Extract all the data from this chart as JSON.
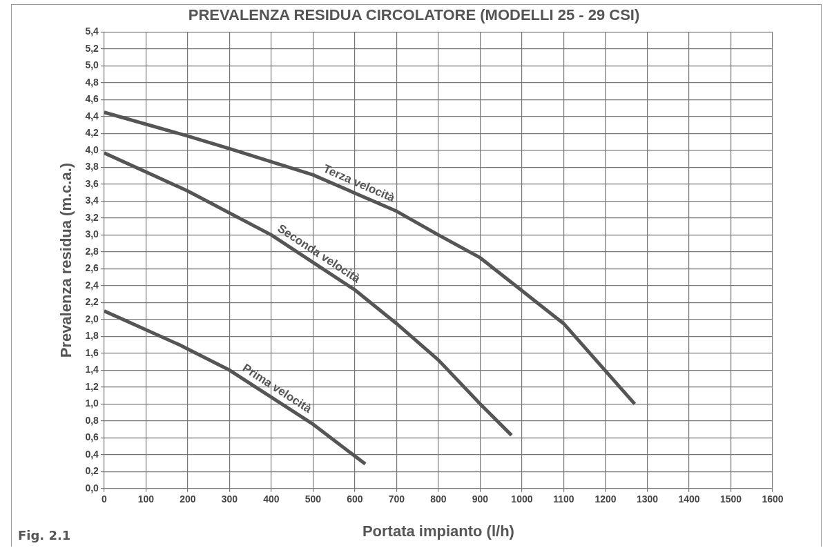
{
  "chart_data": {
    "type": "line",
    "title": "PREVALENZA RESIDUA CIRCOLATORE (MODELLI 25 - 29 CSI)",
    "xlabel": "Portata impianto (l/h)",
    "ylabel": "Prevalenza residua (m.c.a.)",
    "xlim": [
      0,
      1600
    ],
    "xticks": [
      0,
      100,
      200,
      300,
      400,
      500,
      600,
      700,
      800,
      900,
      1000,
      1100,
      1200,
      1300,
      1400,
      1500,
      1600
    ],
    "ylim": [
      0,
      5.4
    ],
    "yticks": [
      {
        "value": 0,
        "label": "0,0"
      },
      {
        "value": 0.2,
        "label": "0,2"
      },
      {
        "value": 0.4,
        "label": "0,4"
      },
      {
        "value": 0.6,
        "label": "0,6"
      },
      {
        "value": 0.8,
        "label": "0,8"
      },
      {
        "value": 1,
        "label": "1,0"
      },
      {
        "value": 1.2,
        "label": "1,2"
      },
      {
        "value": 1.4,
        "label": "1,4"
      },
      {
        "value": 1.6,
        "label": "1,6"
      },
      {
        "value": 1.8,
        "label": "1,8"
      },
      {
        "value": 2,
        "label": "2,0"
      },
      {
        "value": 2.2,
        "label": "2,2"
      },
      {
        "value": 2.4,
        "label": "2,4"
      },
      {
        "value": 2.6,
        "label": "2,6"
      },
      {
        "value": 2.8,
        "label": "2,8"
      },
      {
        "value": 3,
        "label": "3,0"
      },
      {
        "value": 3.2,
        "label": "3,2"
      },
      {
        "value": 3.4,
        "label": "3,4"
      },
      {
        "value": 3.6,
        "label": "3,6"
      },
      {
        "value": 3.8,
        "label": "3,8"
      },
      {
        "value": 4,
        "label": "4,0"
      },
      {
        "value": 4.2,
        "label": "4,2"
      },
      {
        "value": 4.4,
        "label": "4,4"
      },
      {
        "value": 4.6,
        "label": "4,6"
      },
      {
        "value": 4.8,
        "label": "4,8"
      },
      {
        "value": 5,
        "label": "5,0"
      },
      {
        "value": 5.2,
        "label": "5,2"
      },
      {
        "value": 5.4,
        "label": "5,4"
      }
    ],
    "grid": true,
    "legend": false,
    "marker": "none",
    "line_style": "solid",
    "series": [
      {
        "name": "Terza velocità",
        "color": "#555555",
        "x": [
          0,
          200,
          300,
          500,
          700,
          800,
          900,
          1100,
          1270
        ],
        "values": [
          4.45,
          4.17,
          4.02,
          3.71,
          3.28,
          3.0,
          2.73,
          1.95,
          1.0
        ]
      },
      {
        "name": "Seconda velocità",
        "color": "#555555",
        "x": [
          0,
          200,
          400,
          600,
          700,
          800,
          900,
          975
        ],
        "values": [
          3.97,
          3.52,
          3.0,
          2.35,
          1.95,
          1.52,
          1.0,
          0.63
        ]
      },
      {
        "name": "Prima velocità",
        "color": "#555555",
        "x": [
          0,
          180,
          300,
          500,
          625
        ],
        "values": [
          2.1,
          1.7,
          1.4,
          0.76,
          0.29
        ]
      }
    ],
    "annotations": [
      "Fig. 2.1"
    ]
  }
}
